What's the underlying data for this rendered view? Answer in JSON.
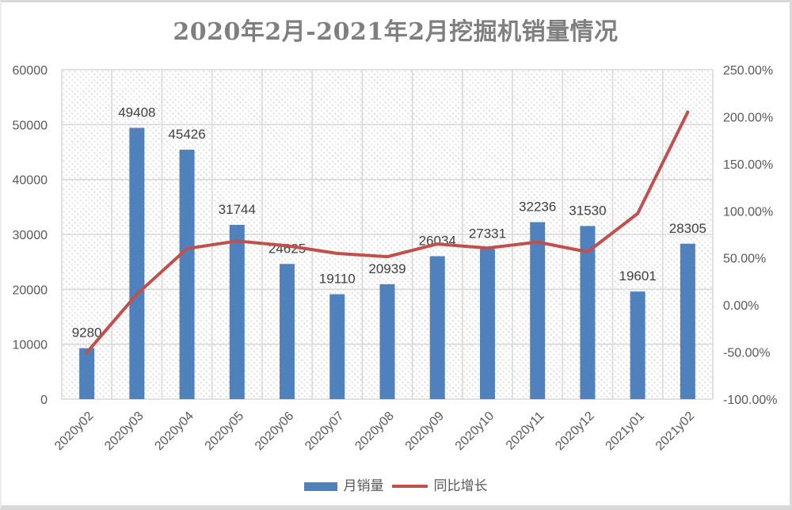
{
  "title": "2020年2月-2021年2月挖掘机销量情况",
  "colors": {
    "bar": "#4F81BD",
    "line": "#C0504D",
    "grid": "#D9D9D9",
    "title_text": "#7F7F7F",
    "axis_text": "#595959",
    "data_label_text": "#404040"
  },
  "chart_data": {
    "type": "combo",
    "title": "2020年2月-2021年2月挖掘机销量情况",
    "categories": [
      "2020y02",
      "2020y03",
      "2020y04",
      "2020y05",
      "2020y06",
      "2020y07",
      "2020y08",
      "2020y09",
      "2020y10",
      "2020y11",
      "2020y12",
      "2021y01",
      "2021y02"
    ],
    "series": [
      {
        "name": "月销量",
        "type": "bar",
        "axis": "left",
        "color": "#4F81BD",
        "values": [
          9280,
          49408,
          45426,
          31744,
          24625,
          19110,
          20939,
          26034,
          27331,
          32236,
          31530,
          19601,
          28305
        ],
        "data_labels_visible": true
      },
      {
        "name": "同比增长",
        "type": "line",
        "axis": "right",
        "color": "#C0504D",
        "values_percent": [
          -50.5,
          11.6,
          59.9,
          68.0,
          62.9,
          54.8,
          51.3,
          64.8,
          60.5,
          66.9,
          56.4,
          97.2,
          205.0
        ],
        "data_labels_visible": false
      }
    ],
    "left_axis": {
      "min": 0,
      "max": 60000,
      "step": 10000,
      "tick_labels": [
        "0",
        "10000",
        "20000",
        "30000",
        "40000",
        "50000",
        "60000"
      ]
    },
    "right_axis": {
      "min": -100,
      "max": 250,
      "step": 50,
      "tick_labels": [
        "-100.00%",
        "-50.00%",
        "0.00%",
        "50.00%",
        "100.00%",
        "150.00%",
        "200.00%",
        "250.00%"
      ]
    },
    "grid": true,
    "legend_position": "bottom",
    "plot_area_fill": "diagonal-hatch"
  }
}
